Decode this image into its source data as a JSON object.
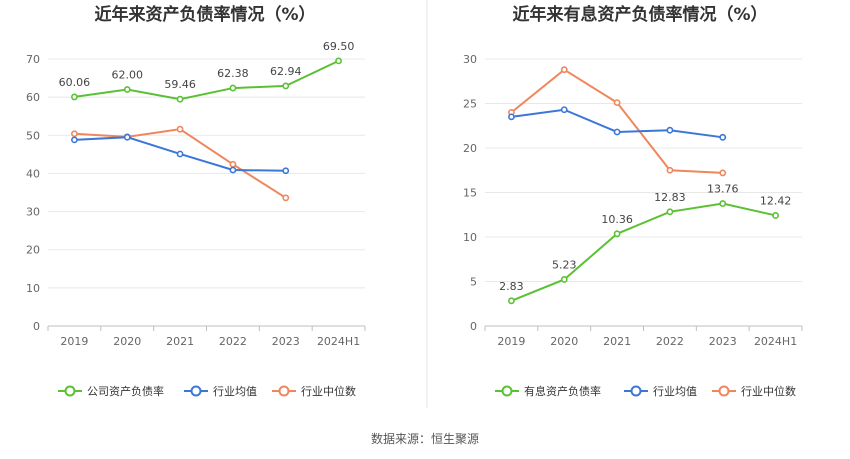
{
  "footer": {
    "source": "数据来源：恒生聚源"
  },
  "chart_data": [
    {
      "type": "line",
      "title": "近年来资产负债率情况（%）",
      "categories": [
        "2019",
        "2020",
        "2021",
        "2022",
        "2023",
        "2024H1"
      ],
      "ylim": [
        0,
        70
      ],
      "yticks": [
        0,
        10,
        20,
        30,
        40,
        50,
        60,
        70
      ],
      "grid": true,
      "legend_position": "bottom",
      "series": [
        {
          "name": "公司资产负债率",
          "color": "#5ac134",
          "values": [
            60.06,
            62.0,
            59.46,
            62.38,
            62.94,
            69.5
          ],
          "labels": [
            "60.06",
            "62.00",
            "59.46",
            "62.38",
            "62.94",
            "69.50"
          ]
        },
        {
          "name": "行业均值",
          "color": "#3b77d8",
          "values": [
            48.8,
            49.5,
            45.1,
            40.9,
            40.7,
            null
          ]
        },
        {
          "name": "行业中位数",
          "color": "#f0865c",
          "values": [
            50.4,
            49.6,
            51.6,
            42.4,
            33.6,
            null
          ]
        }
      ]
    },
    {
      "type": "line",
      "title": "近年来有息资产负债率情况（%）",
      "categories": [
        "2019",
        "2020",
        "2021",
        "2022",
        "2023",
        "2024H1"
      ],
      "ylim": [
        0,
        30
      ],
      "yticks": [
        0,
        5,
        10,
        15,
        20,
        25,
        30
      ],
      "grid": true,
      "legend_position": "bottom",
      "series": [
        {
          "name": "有息资产负债率",
          "color": "#5ac134",
          "values": [
            2.83,
            5.23,
            10.36,
            12.83,
            13.76,
            12.42
          ],
          "labels": [
            "2.83",
            "5.23",
            "10.36",
            "12.83",
            "13.76",
            "12.42"
          ]
        },
        {
          "name": "行业均值",
          "color": "#3b77d8",
          "values": [
            23.5,
            24.3,
            21.8,
            22.0,
            21.2,
            null
          ]
        },
        {
          "name": "行业中位数",
          "color": "#f0865c",
          "values": [
            24.0,
            28.8,
            25.1,
            17.5,
            17.2,
            null
          ]
        }
      ]
    }
  ]
}
